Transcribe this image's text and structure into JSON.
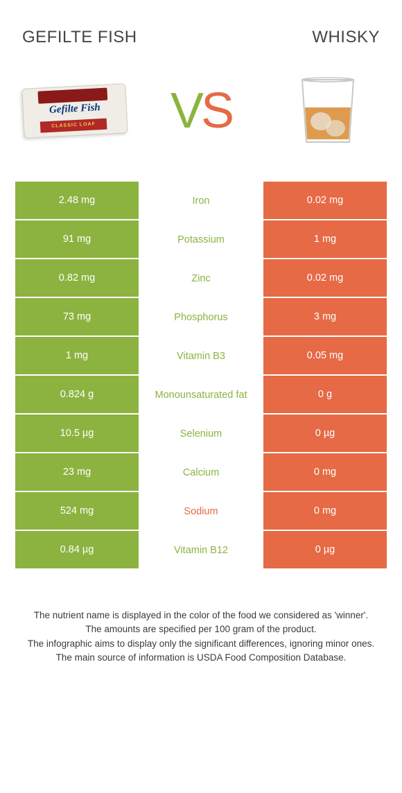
{
  "colors": {
    "left": "#8cb340",
    "right": "#e56a45",
    "text": "#3a3a3a",
    "background": "#ffffff"
  },
  "header": {
    "left_name": "GEFILTE FISH",
    "right_name": "WHISKY",
    "vs_v": "V",
    "vs_s": "S"
  },
  "rows": [
    {
      "left": "2.48 mg",
      "label": "Iron",
      "right": "0.02 mg",
      "winner": "left"
    },
    {
      "left": "91 mg",
      "label": "Potassium",
      "right": "1 mg",
      "winner": "left"
    },
    {
      "left": "0.82 mg",
      "label": "Zinc",
      "right": "0.02 mg",
      "winner": "left"
    },
    {
      "left": "73 mg",
      "label": "Phosphorus",
      "right": "3 mg",
      "winner": "left"
    },
    {
      "left": "1 mg",
      "label": "Vitamin B3",
      "right": "0.05 mg",
      "winner": "left"
    },
    {
      "left": "0.824 g",
      "label": "Monounsaturated fat",
      "right": "0 g",
      "winner": "left"
    },
    {
      "left": "10.5 µg",
      "label": "Selenium",
      "right": "0 µg",
      "winner": "left"
    },
    {
      "left": "23 mg",
      "label": "Calcium",
      "right": "0 mg",
      "winner": "left"
    },
    {
      "left": "524 mg",
      "label": "Sodium",
      "right": "0 mg",
      "winner": "right"
    },
    {
      "left": "0.84 µg",
      "label": "Vitamin B12",
      "right": "0 µg",
      "winner": "left"
    }
  ],
  "footer": {
    "line1": "The nutrient name is displayed in the color of the food we considered as 'winner'.",
    "line2": "The amounts are specified per 100 gram of the product.",
    "line3": "The infographic aims to display only the significant differences, ignoring minor ones.",
    "line4": "The main source of information is USDA Food Composition Database."
  }
}
